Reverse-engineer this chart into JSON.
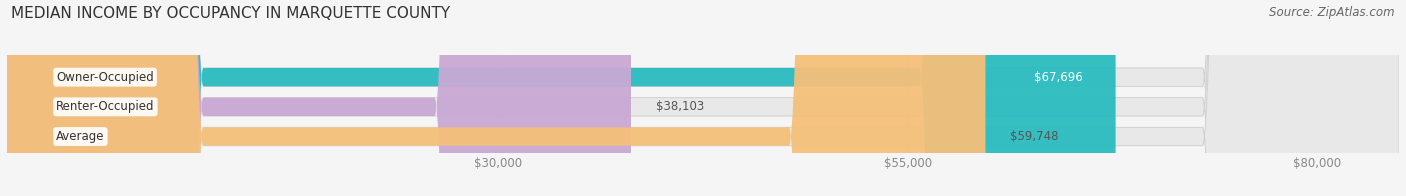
{
  "title": "MEDIAN INCOME BY OCCUPANCY IN MARQUETTE COUNTY",
  "source": "Source: ZipAtlas.com",
  "categories": [
    "Owner-Occupied",
    "Renter-Occupied",
    "Average"
  ],
  "values": [
    67696,
    38103,
    59748
  ],
  "bar_colors": [
    "#2bbcbf",
    "#c9a8d4",
    "#f5c07a"
  ],
  "label_values": [
    "$67,696",
    "$38,103",
    "$59,748"
  ],
  "label_inside": [
    true,
    false,
    false
  ],
  "x_ticks": [
    30000,
    55000,
    80000
  ],
  "x_tick_labels": [
    "$30,000",
    "$55,000",
    "$80,000"
  ],
  "x_max": 85000,
  "x_min": 0,
  "title_fontsize": 11,
  "source_fontsize": 8.5,
  "bar_label_fontsize": 8.5,
  "category_fontsize": 8.5,
  "tick_fontsize": 8.5,
  "background_color": "#f5f5f5",
  "bar_height": 0.62,
  "title_color": "#333333",
  "source_color": "#666666",
  "label_color_inside": "#ffffff",
  "label_color_outside": "#555555",
  "category_color": "#333333",
  "tick_color": "#888888",
  "grid_color": "#d8d8d8",
  "bar_bg_color": "#e8e8e8",
  "bar_edge_color": "#d0d0d0"
}
